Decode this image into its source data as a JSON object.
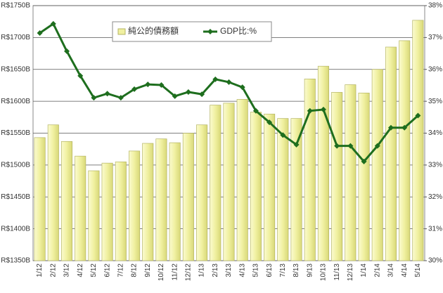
{
  "chart_data": {
    "type": "bar-line",
    "categories": [
      "1/12",
      "2/12",
      "3/12",
      "4/12",
      "5/12",
      "6/12",
      "7/12",
      "8/12",
      "9/12",
      "10/12",
      "11/12",
      "12/12",
      "1/13",
      "2/13",
      "3/13",
      "4/13",
      "5/13",
      "6/13",
      "7/13",
      "8/13",
      "9/13",
      "10/13",
      "11/13",
      "12/13",
      "1/14",
      "2/14",
      "3/14",
      "4/14",
      "5/14"
    ],
    "series": [
      {
        "name": "純公的債務額",
        "type": "bar",
        "color": "#f0f0a0",
        "axis": "y",
        "values": [
          1543,
          1563,
          1537,
          1514,
          1491,
          1503,
          1505,
          1522,
          1534,
          1541,
          1535,
          1550,
          1563,
          1594,
          1597,
          1603,
          1583,
          1580,
          1573,
          1573,
          1635,
          1655,
          1614,
          1626,
          1613,
          1650,
          1685,
          1695,
          1727
        ]
      },
      {
        "name": "GDP比:%",
        "type": "line",
        "color": "#1e6e1e",
        "axis": "y2",
        "values": [
          37.14,
          37.43,
          36.57,
          35.8,
          35.11,
          35.24,
          35.11,
          35.38,
          35.53,
          35.51,
          35.16,
          35.29,
          35.22,
          35.69,
          35.6,
          35.44,
          34.7,
          34.34,
          33.94,
          33.64,
          34.7,
          34.74,
          33.6,
          33.6,
          33.11,
          33.6,
          34.17,
          34.17,
          34.55
        ]
      }
    ],
    "ylim": [
      1350,
      1750
    ],
    "yticks": [
      {
        "value": 1350,
        "label": "R$1350B"
      },
      {
        "value": 1400,
        "label": "R$1400B"
      },
      {
        "value": 1450,
        "label": "R$1450B"
      },
      {
        "value": 1500,
        "label": "R$1500B"
      },
      {
        "value": 1550,
        "label": "R$1550B"
      },
      {
        "value": 1600,
        "label": "R$1600B"
      },
      {
        "value": 1650,
        "label": "R$1650B"
      },
      {
        "value": 1700,
        "label": "R$1700B"
      },
      {
        "value": 1750,
        "label": "R$1750B"
      }
    ],
    "y2lim": [
      30,
      38
    ],
    "y2ticks": [
      {
        "value": 30,
        "label": "30%"
      },
      {
        "value": 31,
        "label": "31%"
      },
      {
        "value": 32,
        "label": "32%"
      },
      {
        "value": 33,
        "label": "33%"
      },
      {
        "value": 34,
        "label": "34%"
      },
      {
        "value": 35,
        "label": "35%"
      },
      {
        "value": 36,
        "label": "36%"
      },
      {
        "value": 37,
        "label": "37%"
      },
      {
        "value": 38,
        "label": "38%"
      }
    ],
    "grid": true,
    "legend": "top"
  }
}
